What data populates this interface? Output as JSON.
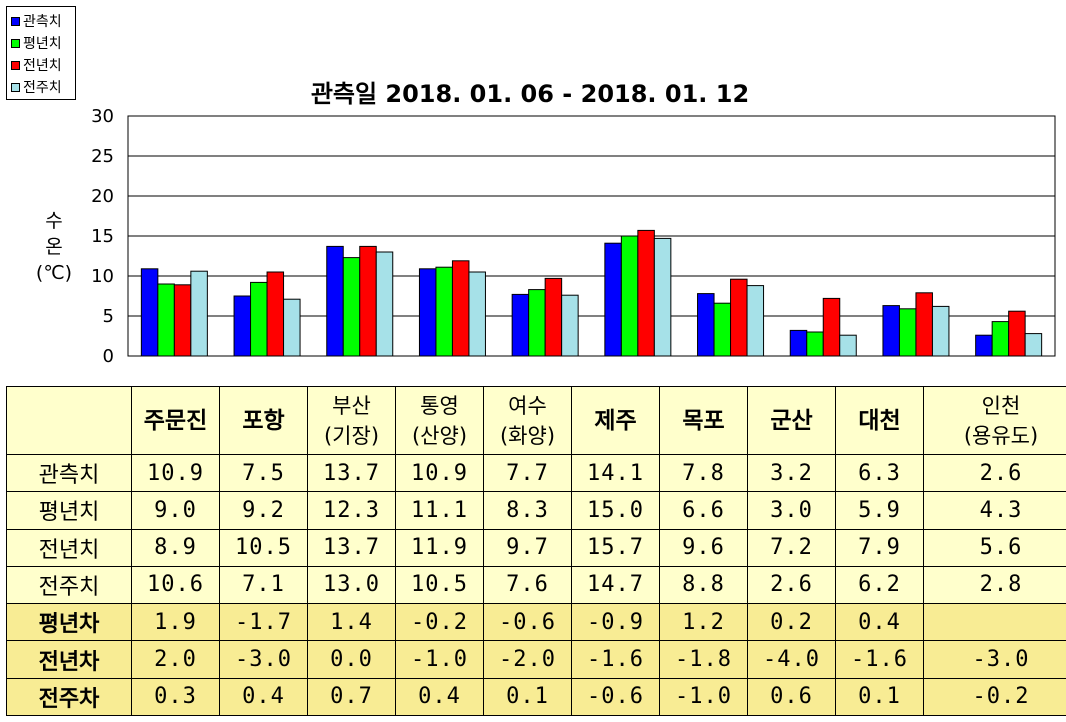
{
  "chart_data": {
    "type": "bar",
    "title": "관측일 2018. 01. 06 - 2018. 01. 12",
    "ylabel_lines": [
      "수",
      "온",
      "(℃)"
    ],
    "ylim": [
      0,
      30
    ],
    "yticks": [
      0,
      5,
      10,
      15,
      20,
      25,
      30
    ],
    "grid": true,
    "legend_position": "top-left",
    "categories": [
      "주문진",
      "포항",
      "부산 (기장)",
      "통영 (산양)",
      "여수 (화양)",
      "제주",
      "목포",
      "군산",
      "대천",
      "인천 (용유도)"
    ],
    "series": [
      {
        "name": "관측치",
        "color": "#0000ff",
        "values": [
          10.9,
          7.5,
          13.7,
          10.9,
          7.7,
          14.1,
          7.8,
          3.2,
          6.3,
          2.6
        ]
      },
      {
        "name": "평년치",
        "color": "#00ff00",
        "values": [
          9.0,
          9.2,
          12.3,
          11.1,
          8.3,
          15.0,
          6.6,
          3.0,
          5.9,
          4.3
        ]
      },
      {
        "name": "전년치",
        "color": "#ff0000",
        "values": [
          8.9,
          10.5,
          13.7,
          11.9,
          9.7,
          15.7,
          9.6,
          7.2,
          7.9,
          5.6
        ]
      },
      {
        "name": "전주치",
        "color": "#a6e1e8",
        "values": [
          10.6,
          7.1,
          13.0,
          10.5,
          7.6,
          14.7,
          8.8,
          2.6,
          6.2,
          2.8
        ]
      }
    ]
  },
  "table": {
    "headers": [
      [
        "주문진"
      ],
      [
        "포항"
      ],
      [
        "부산",
        "(기장)"
      ],
      [
        "통영",
        "(산양)"
      ],
      [
        "여수",
        "(화양)"
      ],
      [
        "제주"
      ],
      [
        "목포"
      ],
      [
        "군산"
      ],
      [
        "대천"
      ],
      [
        "인천",
        "(용유도)"
      ]
    ],
    "rows": [
      {
        "label": "관측치",
        "values": [
          "10.9",
          "7.5",
          "13.7",
          "10.9",
          "7.7",
          "14.1",
          "7.8",
          "3.2",
          "6.3",
          "2.6"
        ]
      },
      {
        "label": "평년치",
        "values": [
          "9.0",
          "9.2",
          "12.3",
          "11.1",
          "8.3",
          "15.0",
          "6.6",
          "3.0",
          "5.9",
          "4.3"
        ]
      },
      {
        "label": "전년치",
        "values": [
          "8.9",
          "10.5",
          "13.7",
          "11.9",
          "9.7",
          "15.7",
          "9.6",
          "7.2",
          "7.9",
          "5.6"
        ]
      },
      {
        "label": "전주치",
        "values": [
          "10.6",
          "7.1",
          "13.0",
          "10.5",
          "7.6",
          "14.7",
          "8.8",
          "2.6",
          "6.2",
          "2.8"
        ]
      },
      {
        "label": "평년차",
        "values": [
          "1.9",
          "-1.7",
          "1.4",
          "-0.2",
          "-0.6",
          "-0.9",
          "1.2",
          "0.2",
          "0.4",
          ""
        ]
      },
      {
        "label": "전년차",
        "values": [
          "2.0",
          "-3.0",
          "0.0",
          "-1.0",
          "-2.0",
          "-1.6",
          "-1.8",
          "-4.0",
          "-1.6",
          "-3.0"
        ]
      },
      {
        "label": "전주차",
        "values": [
          "0.3",
          "0.4",
          "0.7",
          "0.4",
          "0.1",
          "-0.6",
          "-1.0",
          "0.6",
          "0.1",
          "-0.2"
        ]
      }
    ]
  }
}
